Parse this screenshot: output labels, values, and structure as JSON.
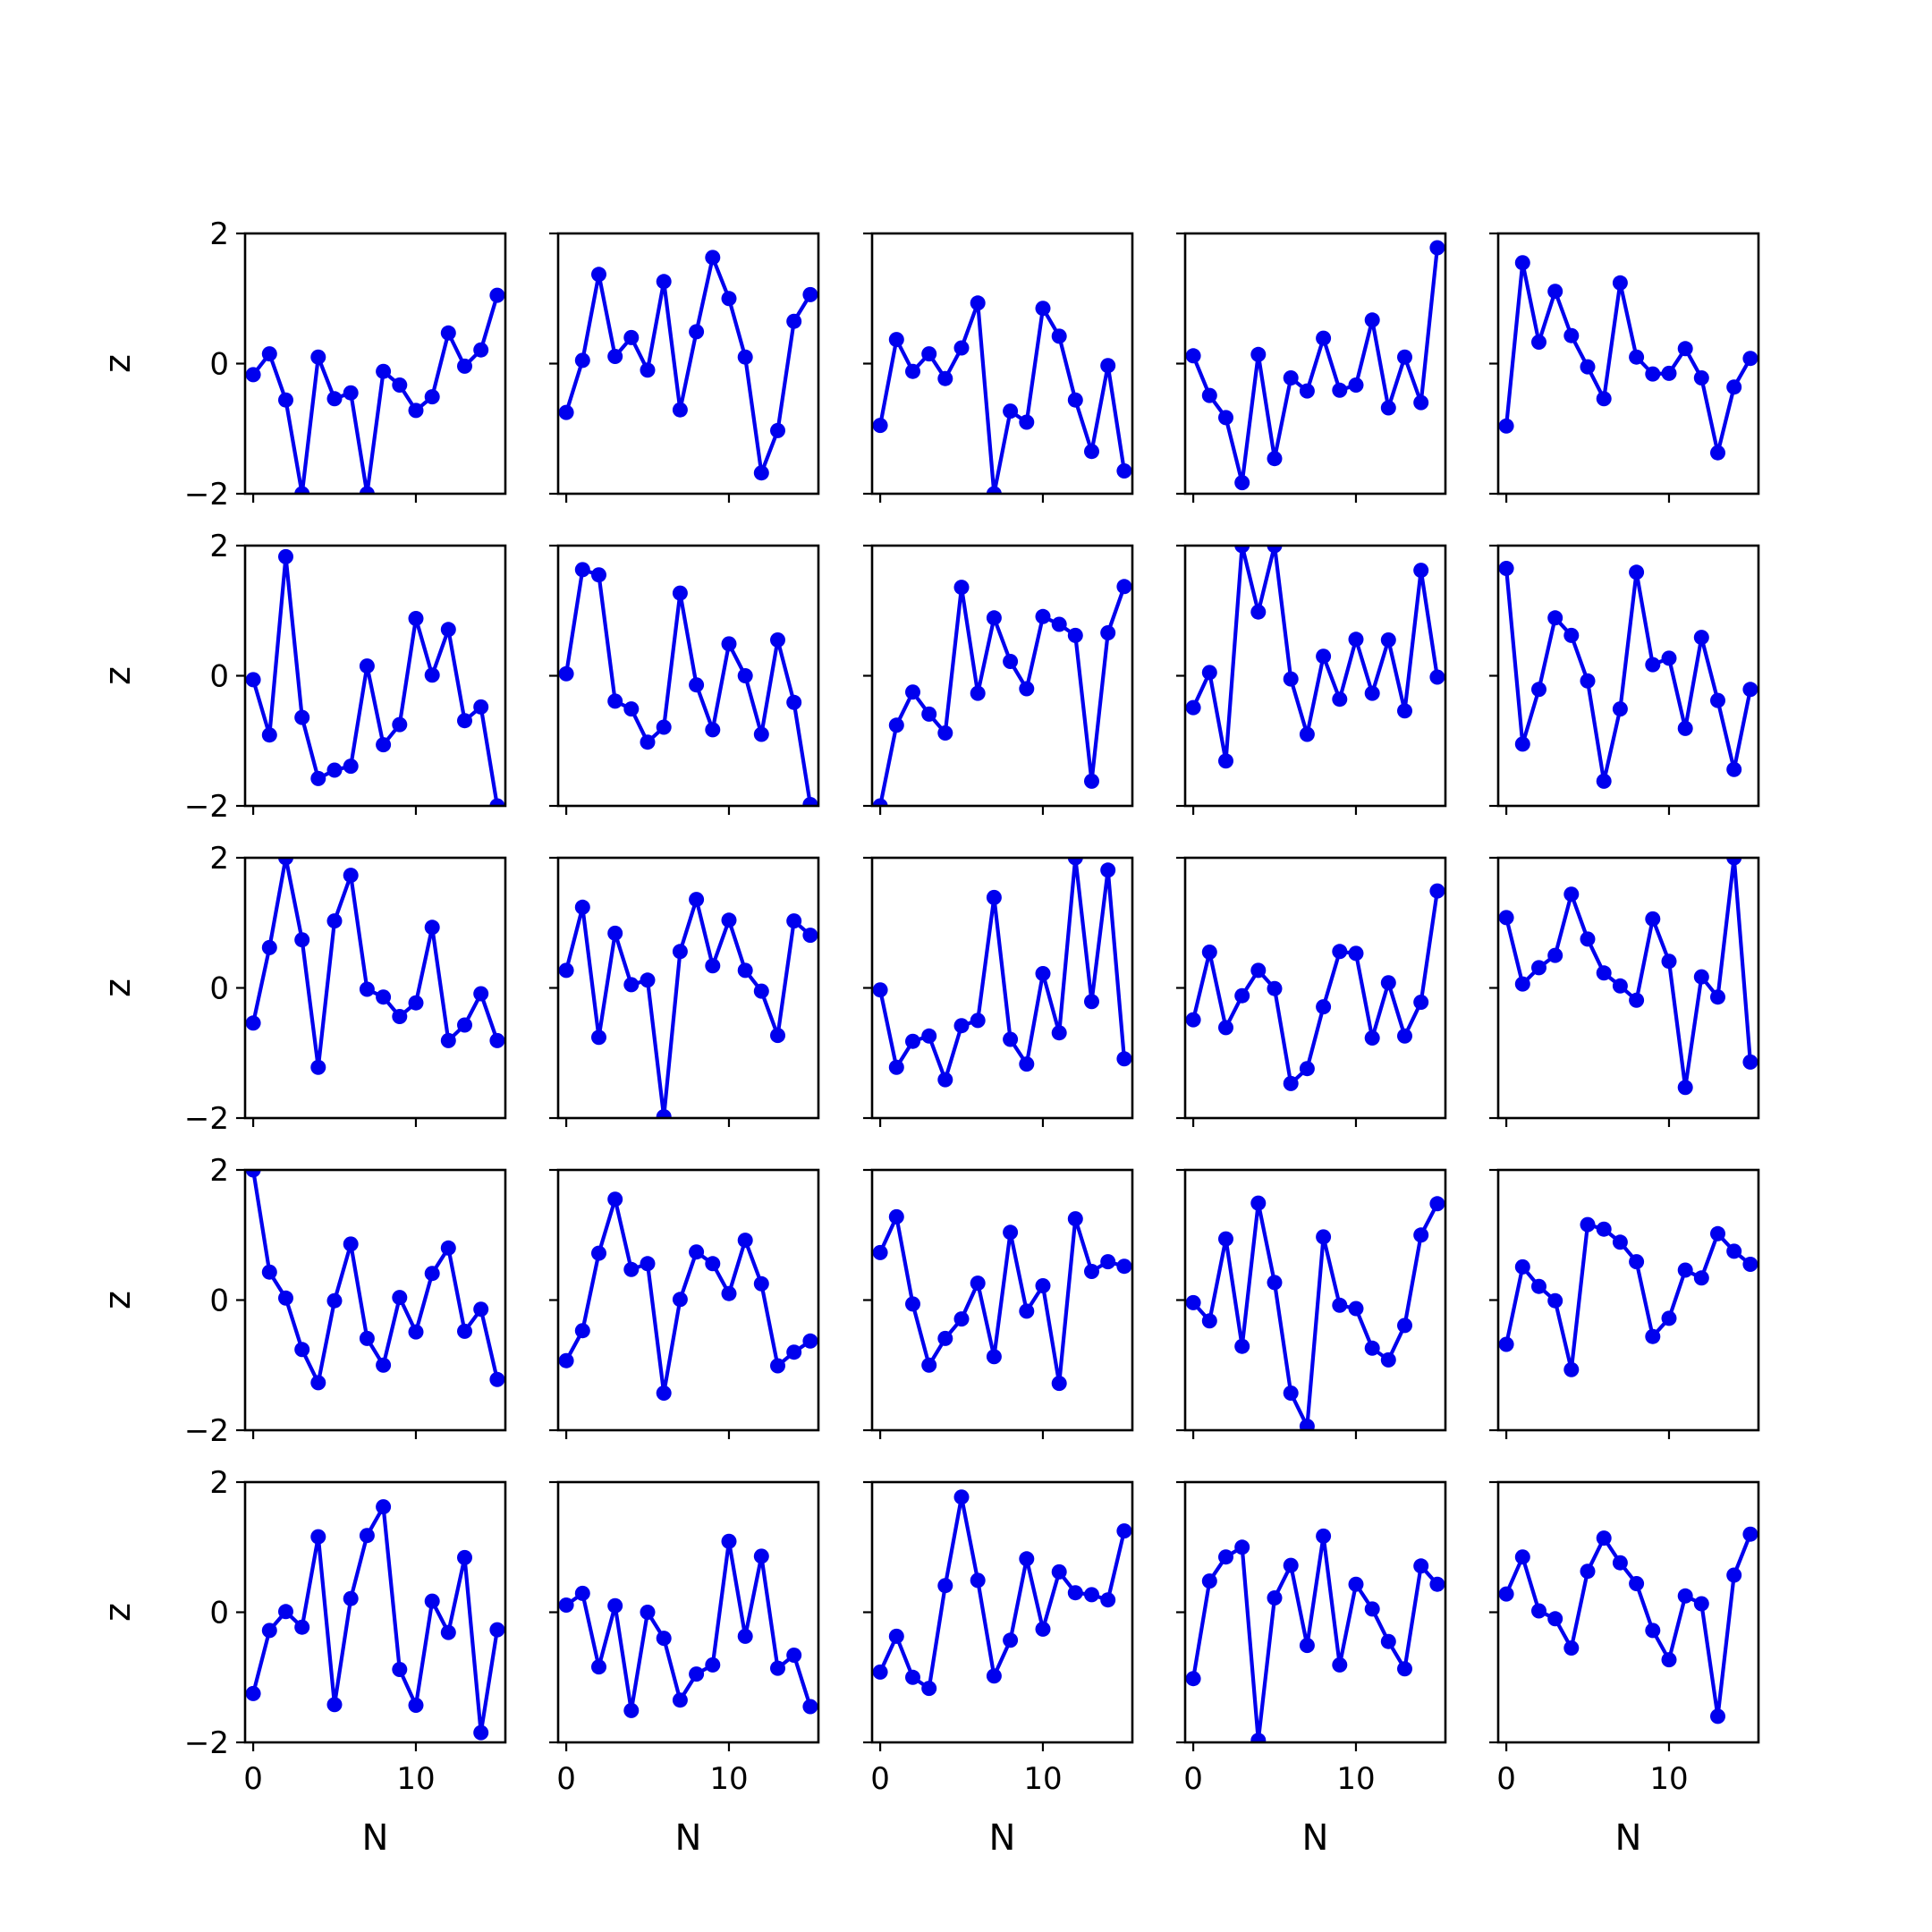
{
  "chart_data": {
    "type": "line",
    "layout": {
      "rows": 5,
      "cols": 5
    },
    "line_color": "#0000ee",
    "marker": "circle",
    "xlabel": "N",
    "ylabel": "z",
    "xlim": [
      -0.5,
      15.5
    ],
    "ylim": [
      -2,
      2
    ],
    "xticks": [
      0,
      10
    ],
    "yticks": [
      -2,
      0,
      2
    ],
    "x": [
      0,
      1,
      2,
      3,
      4,
      5,
      6,
      7,
      8,
      9,
      10,
      11,
      12,
      13,
      14,
      15
    ],
    "panels": [
      [
        -0.17,
        0.15,
        -0.56,
        -2.0,
        0.1,
        -0.54,
        -0.45,
        -2.0,
        -0.12,
        -0.33,
        -0.72,
        -0.51,
        0.47,
        -0.04,
        0.21,
        1.05
      ],
      [
        -0.75,
        0.05,
        1.37,
        0.11,
        0.4,
        -0.1,
        1.26,
        -0.71,
        0.49,
        1.63,
        1.0,
        0.1,
        -1.68,
        -1.03,
        0.65,
        1.06
      ],
      [
        -0.95,
        0.37,
        -0.12,
        0.15,
        -0.23,
        0.24,
        0.93,
        -2.0,
        -0.73,
        -0.9,
        0.85,
        0.42,
        -0.56,
        -1.35,
        -0.03,
        -1.65
      ],
      [
        0.12,
        -0.49,
        -0.83,
        -1.83,
        0.14,
        -1.46,
        -0.22,
        -0.42,
        0.39,
        -0.41,
        -0.33,
        0.67,
        -0.68,
        0.1,
        -0.6,
        1.78
      ],
      [
        -0.96,
        1.55,
        0.33,
        1.11,
        0.43,
        -0.05,
        -0.54,
        1.24,
        0.1,
        -0.16,
        -0.15,
        0.23,
        -0.22,
        -1.37,
        -0.36,
        0.08
      ],
      [
        -0.06,
        -0.91,
        1.83,
        -0.64,
        -1.58,
        -1.45,
        -1.39,
        0.15,
        -1.06,
        -0.75,
        0.88,
        0.01,
        0.71,
        -0.69,
        -0.48,
        -2.0
      ],
      [
        0.03,
        1.63,
        1.55,
        -0.39,
        -0.51,
        -1.02,
        -0.79,
        1.27,
        -0.14,
        -0.83,
        0.49,
        0.0,
        -0.9,
        0.55,
        -0.41,
        -1.98
      ],
      [
        -2.0,
        -0.76,
        -0.25,
        -0.59,
        -0.88,
        1.36,
        -0.27,
        0.89,
        0.22,
        -0.2,
        0.91,
        0.79,
        0.62,
        -1.62,
        0.66,
        1.37
      ],
      [
        -0.49,
        0.05,
        -1.31,
        2.0,
        0.98,
        2.0,
        -0.05,
        -0.9,
        0.3,
        -0.36,
        0.56,
        -0.27,
        0.55,
        -0.54,
        1.62,
        -0.02
      ],
      [
        1.65,
        -1.05,
        -0.21,
        0.89,
        0.62,
        -0.08,
        -1.62,
        -0.51,
        1.59,
        0.17,
        0.27,
        -0.81,
        0.59,
        -0.38,
        -1.44,
        -0.21
      ],
      [
        -0.54,
        0.62,
        2.0,
        0.74,
        -1.22,
        1.03,
        1.73,
        -0.02,
        -0.14,
        -0.44,
        -0.23,
        0.93,
        -0.81,
        -0.57,
        -0.09,
        -0.81
      ],
      [
        0.27,
        1.24,
        -0.76,
        0.84,
        0.05,
        0.12,
        -1.98,
        0.56,
        1.36,
        0.34,
        1.04,
        0.27,
        -0.05,
        -0.73,
        1.03,
        0.81
      ],
      [
        -0.03,
        -1.22,
        -0.82,
        -0.74,
        -1.41,
        -0.58,
        -0.5,
        1.39,
        -0.79,
        -1.17,
        0.22,
        -0.69,
        2.0,
        -0.21,
        1.81,
        -1.09
      ],
      [
        -0.49,
        0.55,
        -0.61,
        -0.12,
        0.27,
        -0.01,
        -1.47,
        -1.24,
        -0.29,
        0.56,
        0.53,
        -0.77,
        0.08,
        -0.74,
        -0.22,
        1.49
      ],
      [
        1.08,
        0.06,
        0.31,
        0.5,
        1.44,
        0.75,
        0.23,
        0.03,
        -0.19,
        1.06,
        0.41,
        -1.53,
        0.17,
        -0.14,
        2.0,
        -1.14
      ],
      [
        2.0,
        0.43,
        0.03,
        -0.76,
        -1.27,
        -0.01,
        0.86,
        -0.59,
        -1.0,
        0.04,
        -0.49,
        0.41,
        0.8,
        -0.48,
        -0.14,
        -1.22
      ],
      [
        -0.93,
        -0.47,
        0.72,
        1.55,
        0.47,
        0.56,
        -1.43,
        0.01,
        0.74,
        0.56,
        0.1,
        0.92,
        0.25,
        -1.01,
        -0.8,
        -0.63
      ],
      [
        0.73,
        1.28,
        -0.06,
        -1.0,
        -0.59,
        -0.29,
        0.26,
        -0.87,
        1.04,
        -0.17,
        0.22,
        -1.28,
        1.25,
        0.44,
        0.59,
        0.52
      ],
      [
        -0.04,
        -0.32,
        0.94,
        -0.71,
        1.49,
        0.27,
        -1.43,
        -1.94,
        0.97,
        -0.08,
        -0.13,
        -0.74,
        -0.92,
        -0.39,
        1.0,
        1.48
      ],
      [
        -0.68,
        0.51,
        0.21,
        -0.01,
        -1.07,
        1.16,
        1.09,
        0.89,
        0.59,
        -0.56,
        -0.28,
        0.46,
        0.34,
        1.02,
        0.75,
        0.55
      ],
      [
        -1.25,
        -0.28,
        0.01,
        -0.23,
        1.16,
        -1.42,
        0.21,
        1.18,
        1.62,
        -0.88,
        -1.43,
        0.17,
        -0.31,
        0.84,
        -1.85,
        -0.27
      ],
      [
        0.11,
        0.29,
        -0.84,
        0.1,
        -1.51,
        0.0,
        -0.4,
        -1.35,
        -0.95,
        -0.81,
        1.09,
        -0.37,
        0.86,
        -0.86,
        -0.66,
        -1.45
      ],
      [
        -0.92,
        -0.37,
        -1.0,
        -1.17,
        0.41,
        1.77,
        0.49,
        -0.98,
        -0.43,
        0.82,
        -0.26,
        0.62,
        0.3,
        0.27,
        0.19,
        1.25
      ],
      [
        -1.02,
        0.48,
        0.85,
        1.0,
        -1.97,
        0.22,
        0.72,
        -0.51,
        1.17,
        -0.81,
        0.43,
        0.05,
        -0.45,
        -0.87,
        0.71,
        0.43
      ],
      [
        0.28,
        0.85,
        0.02,
        -0.1,
        -0.55,
        0.63,
        1.14,
        0.76,
        0.44,
        -0.28,
        -0.73,
        0.25,
        0.13,
        -1.6,
        0.57,
        1.2
      ]
    ]
  }
}
